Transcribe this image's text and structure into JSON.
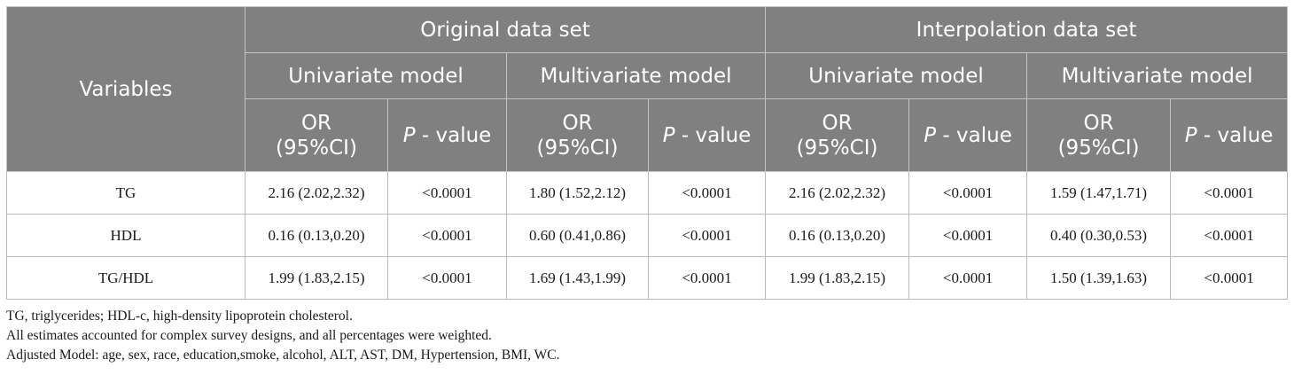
{
  "header": {
    "variables_label": "Variables",
    "groups": [
      "Original data set",
      "Interpolation data set"
    ],
    "models": [
      "Univariate model",
      "Multivariate model",
      "Univariate model",
      "Multivariate model"
    ],
    "or_line1": "OR",
    "or_line2": "(95%CI)",
    "p_italic": "P",
    "p_rest": " - value"
  },
  "rows": [
    {
      "variable": "TG",
      "values": [
        "2.16 (2.02,2.32)",
        "<0.0001",
        "1.80 (1.52,2.12)",
        "<0.0001",
        "2.16 (2.02,2.32)",
        "<0.0001",
        "1.59 (1.47,1.71)",
        "<0.0001"
      ]
    },
    {
      "variable": "HDL",
      "values": [
        "0.16 (0.13,0.20)",
        "<0.0001",
        "0.60 (0.41,0.86)",
        "<0.0001",
        "0.16 (0.13,0.20)",
        "<0.0001",
        "0.40 (0.30,0.53)",
        "<0.0001"
      ]
    },
    {
      "variable": "TG/HDL",
      "values": [
        "1.99 (1.83,2.15)",
        "<0.0001",
        "1.69 (1.43,1.99)",
        "<0.0001",
        "1.99 (1.83,2.15)",
        "<0.0001",
        "1.50 (1.39,1.63)",
        "<0.0001"
      ]
    }
  ],
  "footnotes": [
    "TG, triglycerides; HDL-c, high-density lipoprotein cholesterol.",
    "All estimates accounted for complex survey designs, and all percentages were weighted.",
    "Adjusted Model: age, sex, race, education,smoke, alcohol, ALT, AST, DM, Hypertension, BMI, WC."
  ]
}
